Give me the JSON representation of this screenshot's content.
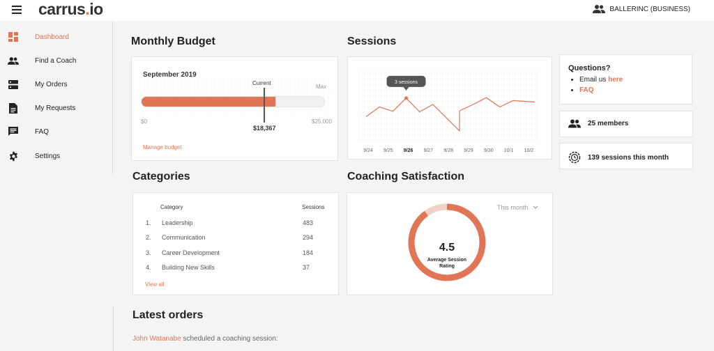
{
  "header": {
    "logo_main": "carrus",
    "logo_dot": ".",
    "logo_tld": "io",
    "account": "BALLERINC (BUSINESS)"
  },
  "sidebar": {
    "items": [
      {
        "label": "Dashboard",
        "icon": "dashboard-icon",
        "active": true
      },
      {
        "label": "Find a Coach",
        "icon": "people-icon"
      },
      {
        "label": "My Orders",
        "icon": "orders-icon"
      },
      {
        "label": "My Requests",
        "icon": "document-icon"
      },
      {
        "label": "FAQ",
        "icon": "chat-icon"
      },
      {
        "label": "Settings",
        "icon": "gear-icon"
      }
    ]
  },
  "budget": {
    "title": "Monthly Budget",
    "month": "September 2019",
    "current_label": "Current",
    "max_label": "Max",
    "min_value": "$0",
    "max_value": "$25,000",
    "current_value": "$18,367",
    "fill_fraction": 0.7347,
    "manage_link": "Manage budget"
  },
  "sessions": {
    "title": "Sessions",
    "tooltip": "3 sessions",
    "highlight_index": 2,
    "chart_data": {
      "type": "line",
      "x": [
        "9/24",
        "9/25",
        "9/26",
        "9/27",
        "9/28",
        "9/29",
        "9/30",
        "10/1",
        "10/2"
      ],
      "xlabel": "",
      "ylabel": ""
    }
  },
  "questions": {
    "title": "Questions?",
    "email_prefix": "Email us ",
    "email_link": "here",
    "faq_link": "FAQ"
  },
  "stats": {
    "members": "25 members",
    "sessions_month": "139 sessions this month"
  },
  "categories": {
    "title": "Categories",
    "col_category": "Category",
    "col_sessions": "Sessions",
    "rows": [
      {
        "num": "1.",
        "name": "Leadership",
        "sessions": "483"
      },
      {
        "num": "2.",
        "name": "Communication",
        "sessions": "294"
      },
      {
        "num": "3.",
        "name": "Career Development",
        "sessions": "184"
      },
      {
        "num": "4.",
        "name": "Building New Skills",
        "sessions": "37"
      }
    ],
    "view_all": "View all"
  },
  "satisfaction": {
    "title": "Coaching Satisfaction",
    "period": "This month",
    "rating": "4.5",
    "rating_label_1": "Average Session",
    "rating_label_2": "Rating",
    "rating_max": 5,
    "rating_fraction": 0.9
  },
  "orders": {
    "title": "Latest orders",
    "first_name": "John Watanabe",
    "first_text": " scheduled a coaching session:"
  },
  "colors": {
    "accent": "#e07656",
    "accent_light": "#f1d2c6"
  }
}
